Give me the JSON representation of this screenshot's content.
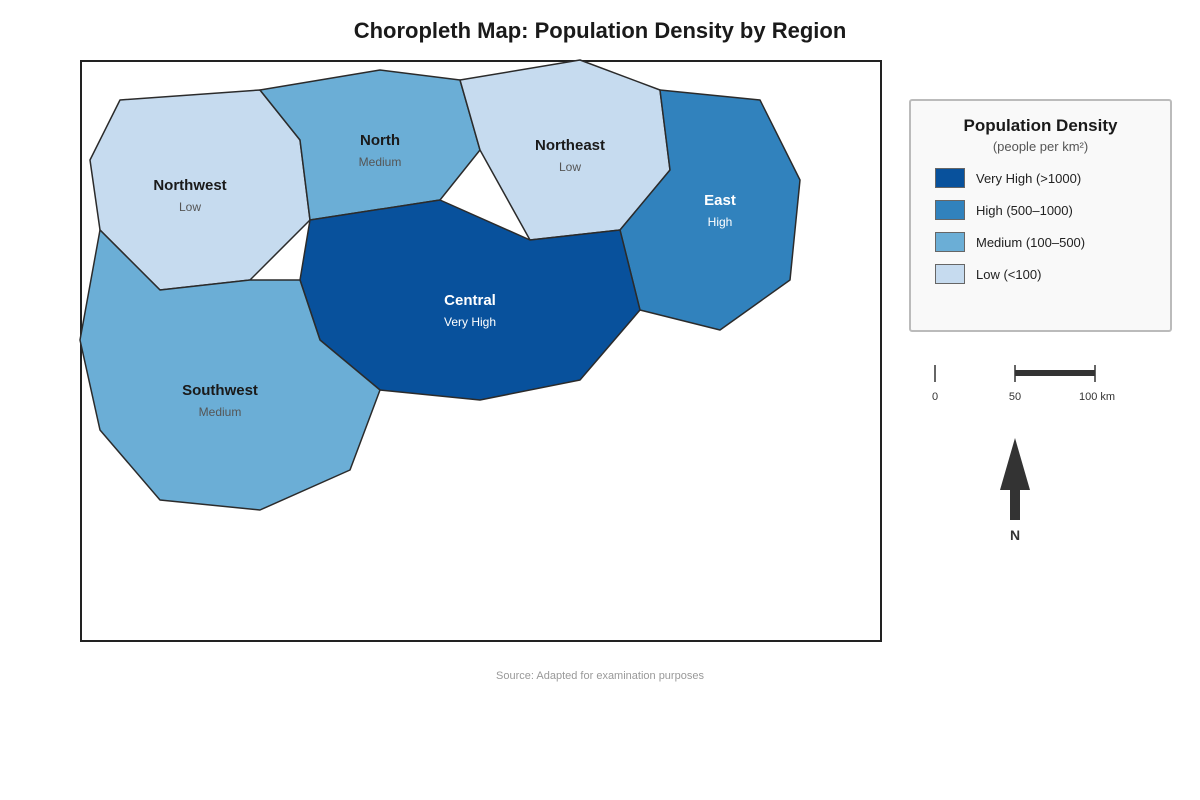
{
  "title": "Choropleth Map: Population Density by Region",
  "map": {
    "regions": [
      {
        "id": "northwest",
        "name": "Northwest",
        "category": "Low",
        "fill": "#c6dbef",
        "dark": false
      },
      {
        "id": "north",
        "name": "North",
        "category": "Medium",
        "fill": "#6baed6",
        "dark": false
      },
      {
        "id": "northeast",
        "name": "Northeast",
        "category": "Low",
        "fill": "#c6dbef",
        "dark": false
      },
      {
        "id": "east",
        "name": "East",
        "category": "High",
        "fill": "#3182bd",
        "dark": true
      },
      {
        "id": "central",
        "name": "Central",
        "category": "Very High",
        "fill": "#08519c",
        "dark": true
      },
      {
        "id": "southwest",
        "name": "Southwest",
        "category": "Medium",
        "fill": "#6baed6",
        "dark": false
      }
    ]
  },
  "legend": {
    "title": "Population Density",
    "subtitle": "(people per km²)",
    "items": [
      {
        "label": "Very High (>1000)",
        "color": "#08519c"
      },
      {
        "label": "High (500–1000)",
        "color": "#3182bd"
      },
      {
        "label": "Medium (100–500)",
        "color": "#6baed6"
      },
      {
        "label": "Low (<100)",
        "color": "#c6dbef"
      }
    ]
  },
  "scale_bar": {
    "labels": [
      "0",
      "50",
      "100 km"
    ]
  },
  "north_arrow": {
    "label": "N"
  },
  "source": "Source: Adapted for examination purposes"
}
